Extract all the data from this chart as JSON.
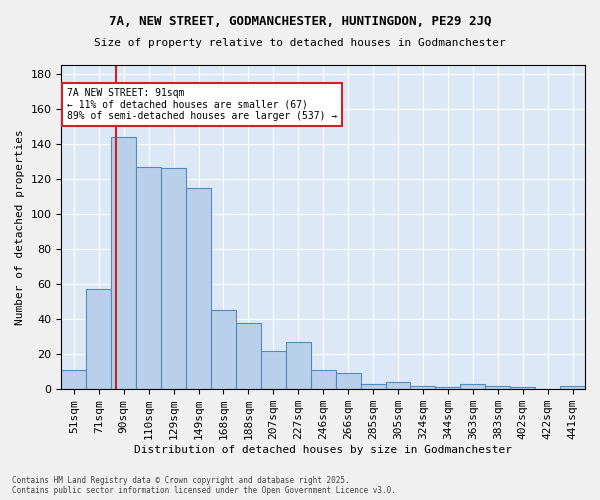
{
  "title1": "7A, NEW STREET, GODMANCHESTER, HUNTINGDON, PE29 2JQ",
  "title2": "Size of property relative to detached houses in Godmanchester",
  "xlabel": "Distribution of detached houses by size in Godmanchester",
  "ylabel": "Number of detached properties",
  "categories": [
    "51sqm",
    "71sqm",
    "90sqm",
    "110sqm",
    "129sqm",
    "149sqm",
    "168sqm",
    "188sqm",
    "207sqm",
    "227sqm",
    "246sqm",
    "266sqm",
    "285sqm",
    "305sqm",
    "324sqm",
    "344sqm",
    "363sqm",
    "383sqm",
    "402sqm",
    "422sqm",
    "441sqm"
  ],
  "bar_values": [
    11,
    57,
    144,
    127,
    126,
    115,
    45,
    38,
    22,
    27,
    11,
    9,
    3,
    4,
    2,
    1,
    3,
    2,
    1,
    0,
    2
  ],
  "background_color": "#dce8f5",
  "bar_color": "#b8d0ea",
  "bar_edge_color": "#5588bb",
  "vline_color": "#cc2222",
  "annotation_text": "7A NEW STREET: 91sqm\n← 11% of detached houses are smaller (67)\n89% of semi-detached houses are larger (537) →",
  "annotation_box_edge": "#cc2222",
  "ylim": [
    0,
    185
  ],
  "footer1": "Contains HM Land Registry data © Crown copyright and database right 2025.",
  "footer2": "Contains public sector information licensed under the Open Government Licence v3.0."
}
